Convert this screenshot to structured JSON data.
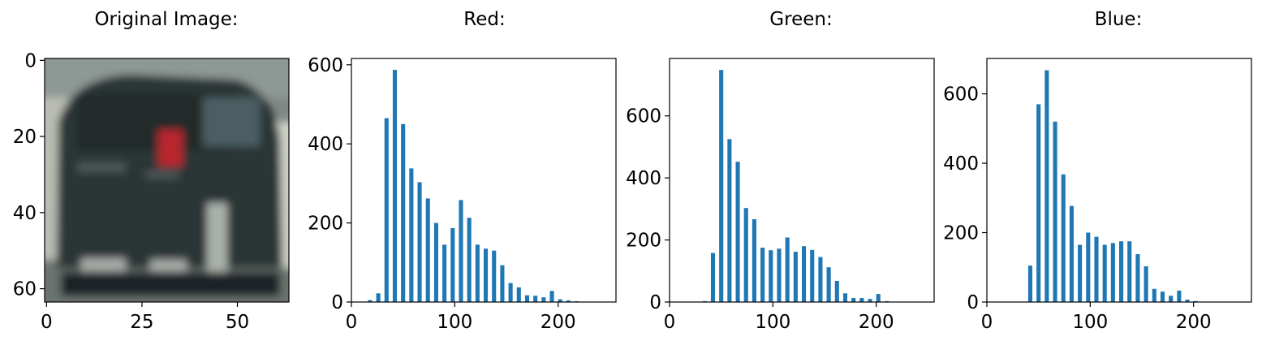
{
  "chart_data": [
    {
      "type": "image",
      "title": "Original Image:",
      "xlim": [
        -0.5,
        63.5
      ],
      "ylim": [
        63.5,
        -0.5
      ],
      "x_ticks": [
        0,
        25,
        50
      ],
      "x_tick_labels": [
        "0",
        "25",
        "50"
      ],
      "y_ticks": [
        0,
        20,
        40,
        60
      ],
      "y_tick_labels": [
        "0",
        "20",
        "40",
        "60"
      ],
      "content": "blurred rear view of a dark car"
    },
    {
      "type": "bar",
      "title": "Red:",
      "color": "#1f77b4",
      "bin_width": 4,
      "x": [
        16,
        24,
        32,
        40,
        48,
        56,
        64,
        72,
        80,
        88,
        96,
        104,
        112,
        120,
        128,
        136,
        144,
        152,
        160,
        168,
        176,
        184,
        192,
        200,
        208,
        216
      ],
      "values": [
        5,
        22,
        465,
        587,
        450,
        338,
        303,
        262,
        200,
        145,
        187,
        258,
        213,
        145,
        135,
        130,
        93,
        48,
        37,
        17,
        16,
        12,
        28,
        7,
        4,
        2
      ],
      "xlim": [
        0,
        256
      ],
      "ylim": [
        0,
        616
      ],
      "x_ticks": [
        0,
        100,
        200
      ],
      "x_tick_labels": [
        "0",
        "100",
        "200"
      ],
      "y_ticks": [
        0,
        200,
        400,
        600
      ],
      "y_tick_labels": [
        "0",
        "200",
        "400",
        "600"
      ]
    },
    {
      "type": "bar",
      "title": "Green:",
      "color": "#1f77b4",
      "bin_width": 4,
      "x": [
        32,
        40,
        48,
        56,
        64,
        72,
        80,
        88,
        96,
        104,
        112,
        120,
        128,
        136,
        144,
        152,
        160,
        168,
        176,
        184,
        192,
        200,
        208
      ],
      "values": [
        3,
        158,
        748,
        525,
        452,
        303,
        267,
        175,
        167,
        172,
        208,
        162,
        180,
        168,
        145,
        112,
        68,
        28,
        13,
        13,
        10,
        26,
        3
      ],
      "xlim": [
        0,
        256
      ],
      "ylim": [
        0,
        785
      ],
      "x_ticks": [
        0,
        100,
        200
      ],
      "x_tick_labels": [
        "0",
        "100",
        "200"
      ],
      "y_ticks": [
        0,
        200,
        400,
        600
      ],
      "y_tick_labels": [
        "0",
        "200",
        "400",
        "600"
      ]
    },
    {
      "type": "bar",
      "title": "Blue:",
      "color": "#1f77b4",
      "bin_width": 4,
      "x": [
        40,
        48,
        56,
        64,
        72,
        80,
        88,
        96,
        104,
        112,
        120,
        128,
        136,
        144,
        152,
        160,
        168,
        176,
        184,
        192,
        200
      ],
      "values": [
        105,
        570,
        668,
        520,
        368,
        277,
        165,
        200,
        188,
        165,
        170,
        175,
        175,
        138,
        103,
        38,
        30,
        18,
        33,
        7,
        3
      ],
      "xlim": [
        0,
        256
      ],
      "ylim": [
        0,
        702
      ],
      "x_ticks": [
        0,
        100,
        200
      ],
      "x_tick_labels": [
        "0",
        "100",
        "200"
      ],
      "y_ticks": [
        0,
        200,
        400,
        600
      ],
      "y_tick_labels": [
        "0",
        "200",
        "400",
        "600"
      ]
    }
  ]
}
